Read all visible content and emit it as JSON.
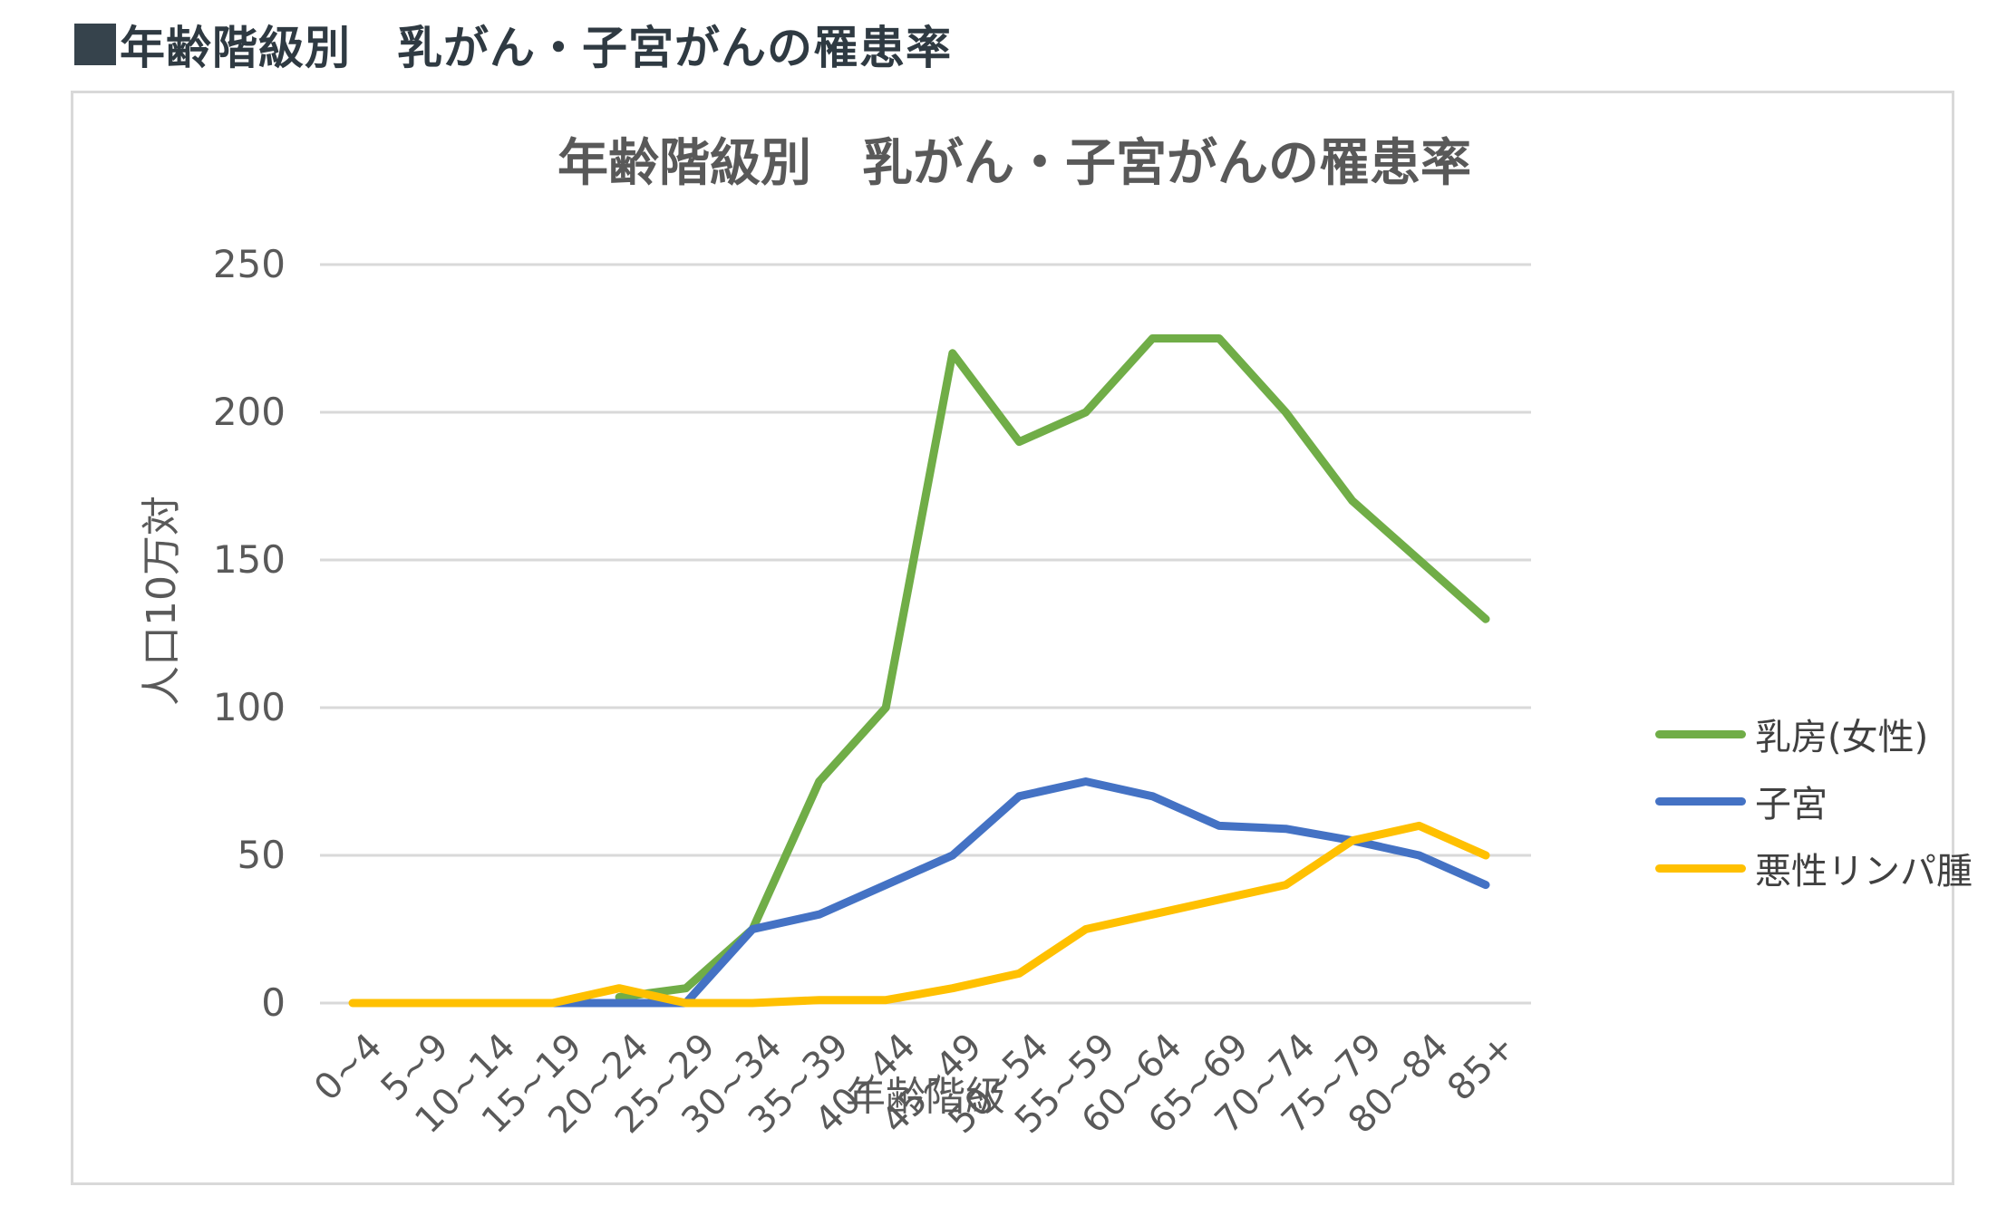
{
  "page": {
    "heading": "年齢階級別　乳がん・子宮がんの罹患率"
  },
  "chart_data": {
    "type": "line",
    "title": "年齢階級別　乳がん・子宮がんの罹患率",
    "xlabel": "年齢階級",
    "ylabel": "人口10万対",
    "ylim": [
      0,
      250
    ],
    "yticks": [
      0,
      50,
      100,
      150,
      200,
      250
    ],
    "grid": true,
    "legend_position": "right",
    "categories": [
      "0-4",
      "5-9",
      "10-14",
      "15-19",
      "20-24",
      "25-29",
      "30-34",
      "35-39",
      "40-44",
      "45-49",
      "50-54",
      "55-59",
      "60-64",
      "65-69",
      "70-74",
      "75-79",
      "80-84",
      "85+"
    ],
    "series": [
      {
        "name": "乳房(女性)",
        "color": "#70ad47",
        "values": [
          null,
          null,
          null,
          null,
          2,
          5,
          25,
          75,
          100,
          220,
          190,
          200,
          225,
          225,
          200,
          170,
          150,
          130
        ]
      },
      {
        "name": "子宮",
        "color": "#4472c4",
        "values": [
          null,
          null,
          null,
          0,
          0,
          0,
          25,
          30,
          40,
          50,
          70,
          75,
          70,
          60,
          59,
          55,
          50,
          40
        ]
      },
      {
        "name": "悪性リンパ腫",
        "color": "#ffc000",
        "values": [
          0,
          0,
          0,
          0,
          5,
          0,
          0,
          1,
          1,
          5,
          10,
          25,
          30,
          35,
          40,
          55,
          60,
          50
        ]
      }
    ]
  }
}
